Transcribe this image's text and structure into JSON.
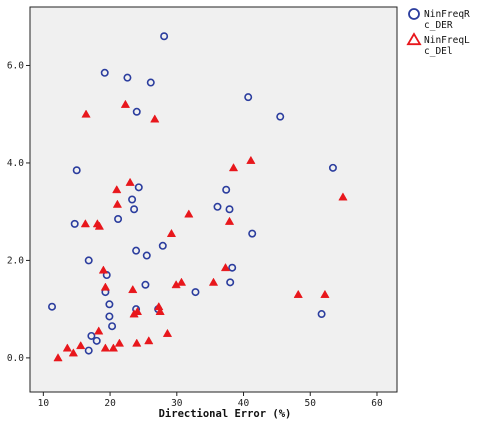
{
  "chart_data": {
    "type": "scatter",
    "xlabel": "Directional Error (%)",
    "ylabel": "",
    "xlim": [
      8,
      63
    ],
    "ylim": [
      -0.7,
      7.2
    ],
    "xticks": [
      "10",
      "20",
      "30",
      "40",
      "50",
      "60"
    ],
    "yticks": [
      "0.0",
      "2.0",
      "4.0",
      "6.0"
    ],
    "legend_position": "top-right",
    "series": [
      {
        "name": "NinFreqRc_DER",
        "legend_lines": [
          "NinFreqR",
          "c_DER"
        ],
        "marker": "circle",
        "color": "#2b3d9e",
        "points": [
          [
            11.3,
            1.05
          ],
          [
            15.0,
            3.85
          ],
          [
            14.7,
            2.75
          ],
          [
            16.8,
            2.0
          ],
          [
            16.8,
            0.15
          ],
          [
            17.2,
            0.45
          ],
          [
            18.0,
            0.35
          ],
          [
            19.2,
            5.85
          ],
          [
            19.3,
            1.35
          ],
          [
            19.5,
            1.7
          ],
          [
            19.9,
            1.1
          ],
          [
            19.9,
            0.85
          ],
          [
            20.3,
            0.65
          ],
          [
            21.2,
            2.85
          ],
          [
            22.6,
            5.75
          ],
          [
            23.3,
            3.25
          ],
          [
            23.6,
            3.05
          ],
          [
            23.9,
            2.2
          ],
          [
            23.9,
            1.0
          ],
          [
            24.0,
            5.05
          ],
          [
            24.3,
            3.5
          ],
          [
            25.5,
            2.1
          ],
          [
            26.1,
            5.65
          ],
          [
            25.3,
            1.5
          ],
          [
            27.2,
            1.0
          ],
          [
            28.1,
            6.6
          ],
          [
            27.9,
            2.3
          ],
          [
            32.8,
            1.35
          ],
          [
            36.1,
            3.1
          ],
          [
            37.4,
            3.45
          ],
          [
            37.9,
            3.05
          ],
          [
            38.0,
            1.55
          ],
          [
            38.3,
            1.85
          ],
          [
            40.7,
            5.35
          ],
          [
            41.3,
            2.55
          ],
          [
            45.5,
            4.95
          ],
          [
            51.7,
            0.9
          ],
          [
            53.4,
            3.9
          ]
        ]
      },
      {
        "name": "NinFreqLc_DEl",
        "legend_lines": [
          "NinFreqL",
          "c_DEl"
        ],
        "marker": "triangle",
        "color": "#e8171c",
        "points": [
          [
            12.2,
            0.0
          ],
          [
            13.6,
            0.2
          ],
          [
            14.5,
            0.1
          ],
          [
            15.6,
            0.25
          ],
          [
            16.4,
            5.0
          ],
          [
            16.3,
            2.75
          ],
          [
            18.1,
            2.75
          ],
          [
            18.4,
            2.7
          ],
          [
            18.3,
            0.55
          ],
          [
            19.0,
            1.8
          ],
          [
            19.3,
            1.45
          ],
          [
            19.3,
            0.2
          ],
          [
            20.5,
            0.2
          ],
          [
            21.0,
            3.45
          ],
          [
            21.1,
            3.15
          ],
          [
            21.4,
            0.3
          ],
          [
            22.3,
            5.2
          ],
          [
            23.0,
            3.6
          ],
          [
            23.4,
            1.4
          ],
          [
            23.6,
            0.9
          ],
          [
            24.1,
            0.95
          ],
          [
            24.0,
            0.3
          ],
          [
            25.8,
            0.35
          ],
          [
            26.7,
            4.9
          ],
          [
            27.3,
            1.05
          ],
          [
            27.5,
            0.95
          ],
          [
            28.6,
            0.5
          ],
          [
            29.2,
            2.55
          ],
          [
            29.9,
            1.5
          ],
          [
            30.7,
            1.55
          ],
          [
            31.8,
            2.95
          ],
          [
            35.5,
            1.55
          ],
          [
            37.3,
            1.85
          ],
          [
            37.9,
            2.8
          ],
          [
            38.5,
            3.9
          ],
          [
            41.1,
            4.05
          ],
          [
            48.2,
            1.3
          ],
          [
            52.2,
            1.3
          ],
          [
            54.9,
            3.3
          ]
        ]
      }
    ]
  }
}
